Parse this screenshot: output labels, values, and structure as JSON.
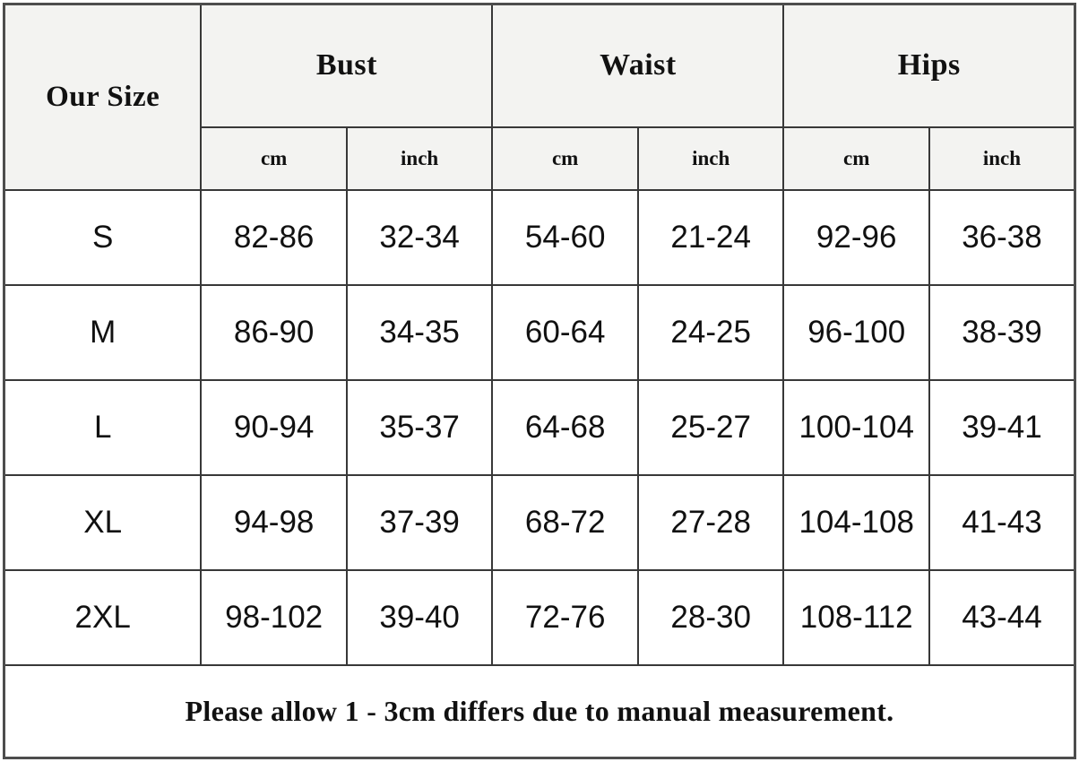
{
  "table": {
    "corner_header": "Our Size",
    "groups": [
      {
        "label": "Bust"
      },
      {
        "label": "Waist"
      },
      {
        "label": "Hips"
      }
    ],
    "unit_headers": [
      "cm",
      "inch",
      "cm",
      "inch",
      "cm",
      "inch"
    ],
    "rows": [
      {
        "size": "S",
        "values": [
          "82-86",
          "32-34",
          "54-60",
          "21-24",
          "92-96",
          "36-38"
        ]
      },
      {
        "size": "M",
        "values": [
          "86-90",
          "34-35",
          "60-64",
          "24-25",
          "96-100",
          "38-39"
        ]
      },
      {
        "size": "L",
        "values": [
          "90-94",
          "35-37",
          "64-68",
          "25-27",
          "100-104",
          "39-41"
        ]
      },
      {
        "size": "XL",
        "values": [
          "94-98",
          "37-39",
          "68-72",
          "27-28",
          "104-108",
          "41-43"
        ]
      },
      {
        "size": "2XL",
        "values": [
          "98-102",
          "39-40",
          "72-76",
          "28-30",
          "108-112",
          "43-44"
        ]
      }
    ],
    "footer_note": "Please allow 1 - 3cm differs due to manual measurement.",
    "colors": {
      "header_background": "#f3f3f1",
      "body_background": "#ffffff",
      "grid_line": "#383838",
      "outer_border": "#4d4d4d",
      "text": "#111111"
    }
  }
}
